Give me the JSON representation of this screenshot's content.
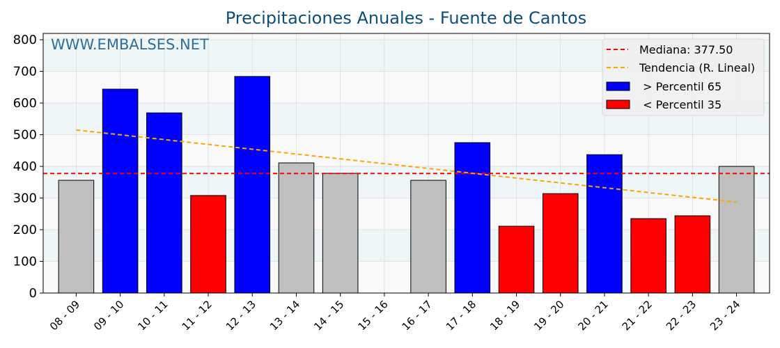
{
  "chart_data": {
    "type": "bar",
    "title": "Precipitaciones Anuales - Fuente de Cantos",
    "watermark": "WWW.EMBALSES.NET",
    "xlabel": "",
    "ylabel": "",
    "ylim": [
      0,
      820
    ],
    "yticks": [
      0,
      100,
      200,
      300,
      400,
      500,
      600,
      700,
      800
    ],
    "grid": true,
    "categories": [
      "08 - 09",
      "09 - 10",
      "10 - 11",
      "11 - 12",
      "12 - 13",
      "13 - 14",
      "14 - 15",
      "15 - 16",
      "16 - 17",
      "17 - 18",
      "18 - 19",
      "19 - 20",
      "20 - 21",
      "21 - 22",
      "22 - 23",
      "23 - 24"
    ],
    "values": [
      356,
      644,
      569,
      308,
      684,
      411,
      378,
      0,
      356,
      475,
      211,
      314,
      437,
      235,
      244,
      400
    ],
    "bar_class": [
      "mid",
      "high",
      "high",
      "low",
      "high",
      "mid",
      "mid",
      "mid",
      "mid",
      "high",
      "low",
      "low",
      "high",
      "low",
      "low",
      "mid"
    ],
    "colors": {
      "high": "#0000ff",
      "low": "#ff0000",
      "mid": "#bfbfbf",
      "median": "#ff0000",
      "trend": "#ffa500",
      "title": "#0b4f79",
      "watermark": "#2e6e99"
    },
    "median": 377.5,
    "trend": {
      "start": 515,
      "end": 287
    },
    "legend": {
      "placement": "top-right",
      "entries": [
        "Mediana: 377.50",
        "Tendencia (R. Lineal)",
        " > Percentil 65",
        " < Percentil 35"
      ]
    }
  }
}
